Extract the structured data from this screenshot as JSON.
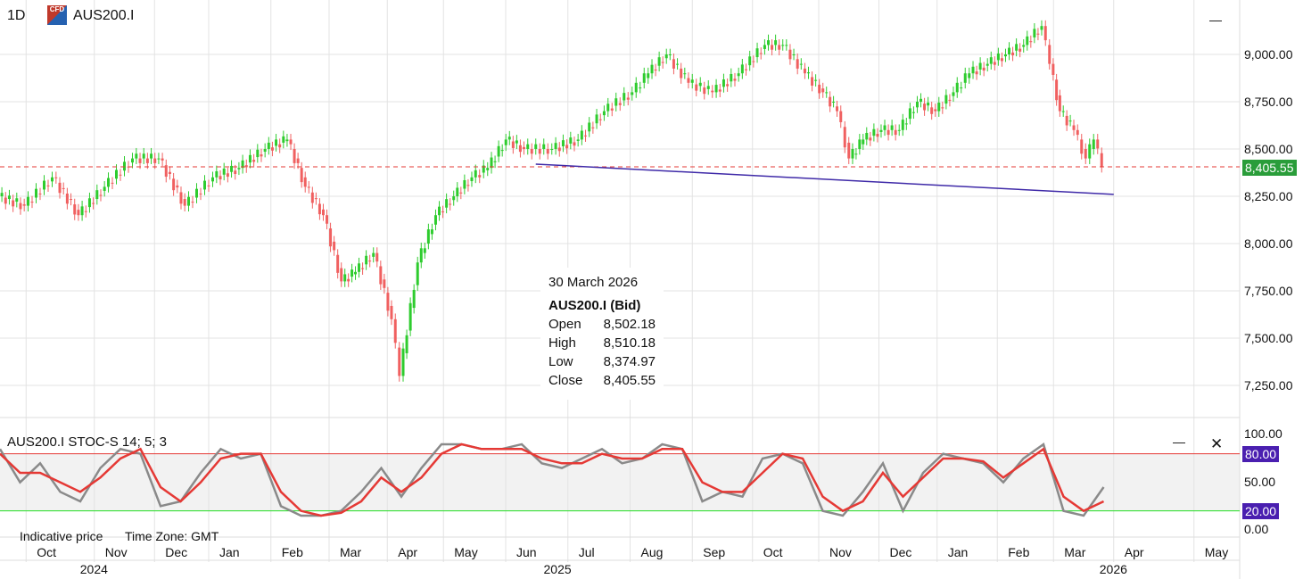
{
  "header": {
    "timeframe": "1D",
    "symbol": "AUS200.I",
    "icon": "cfd-icon",
    "minimize": "—"
  },
  "tooltip": {
    "date": "30 March 2026",
    "title": "AUS200.I (Bid)",
    "rows": [
      {
        "k": "Open",
        "v": "8,502.18"
      },
      {
        "k": "High",
        "v": "8,510.18"
      },
      {
        "k": "Low",
        "v": "8,374.97"
      },
      {
        "k": "Close",
        "v": "8,405.55"
      }
    ]
  },
  "indicator": {
    "title": "AUS200.I STOC-S 14; 5; 3",
    "minimize": "—",
    "close": "✕",
    "upper": "80.00",
    "lower": "20.00",
    "ticks": [
      "100.00",
      "50.00",
      "0.00"
    ]
  },
  "footer": {
    "note": "Indicative price",
    "timezone": "Time Zone: GMT"
  },
  "colors": {
    "up": "#2ecc2e",
    "down": "#f06060",
    "k": "#8a8a8a",
    "d": "#e53935",
    "trend": "#3f2aa8",
    "last": "#2a9d3a"
  },
  "chart_data": {
    "type": "candlestick",
    "last_price": 8405.55,
    "last_price_label": "8,405.55",
    "yticks": [
      {
        "v": 9000,
        "t": "9,000.00"
      },
      {
        "v": 8750,
        "t": "8,750.00"
      },
      {
        "v": 8500,
        "t": "8,500.00"
      },
      {
        "v": 8250,
        "t": "8,250.00"
      },
      {
        "v": 8000,
        "t": "8,000.00"
      },
      {
        "v": 7750,
        "t": "7,750.00"
      },
      {
        "v": 7500,
        "t": "7,500.00"
      },
      {
        "v": 7250,
        "t": "7,250.00"
      }
    ],
    "ylim": [
      7130,
      9230
    ],
    "months": [
      {
        "d": 13,
        "t": "Oct"
      },
      {
        "d": 47,
        "t": "Nov"
      },
      {
        "d": 77,
        "t": "Dec"
      },
      {
        "d": 104,
        "t": "Jan"
      },
      {
        "d": 135,
        "t": "Feb"
      },
      {
        "d": 164,
        "t": "Mar"
      },
      {
        "d": 193,
        "t": "Apr"
      },
      {
        "d": 221,
        "t": "May"
      },
      {
        "d": 252,
        "t": "Jun"
      },
      {
        "d": 283,
        "t": "Jul"
      },
      {
        "d": 314,
        "t": "Aug"
      },
      {
        "d": 345,
        "t": "Sep"
      },
      {
        "d": 375,
        "t": "Oct"
      },
      {
        "d": 408,
        "t": "Nov"
      },
      {
        "d": 438,
        "t": "Dec"
      },
      {
        "d": 467,
        "t": "Jan"
      },
      {
        "d": 497,
        "t": "Feb"
      },
      {
        "d": 525,
        "t": "Mar"
      },
      {
        "d": 555,
        "t": "Apr"
      },
      {
        "d": 595,
        "t": "May"
      }
    ],
    "years": [
      {
        "d": 47,
        "t": "2024"
      },
      {
        "d": 278,
        "t": "2025"
      },
      {
        "d": 555,
        "t": "2026"
      }
    ],
    "closes": [
      [
        0,
        8250
      ],
      [
        13,
        8200
      ],
      [
        27,
        8350
      ],
      [
        40,
        8150
      ],
      [
        53,
        8300
      ],
      [
        67,
        8450
      ],
      [
        80,
        8450
      ],
      [
        93,
        8200
      ],
      [
        107,
        8350
      ],
      [
        120,
        8400
      ],
      [
        133,
        8500
      ],
      [
        144,
        8550
      ],
      [
        153,
        8300
      ],
      [
        162,
        8150
      ],
      [
        171,
        7800
      ],
      [
        178,
        7850
      ],
      [
        187,
        7950
      ],
      [
        196,
        7600
      ],
      [
        200,
        7300
      ],
      [
        209,
        7900
      ],
      [
        218,
        8150
      ],
      [
        227,
        8250
      ],
      [
        236,
        8350
      ],
      [
        244,
        8400
      ],
      [
        253,
        8550
      ],
      [
        262,
        8500
      ],
      [
        276,
        8500
      ],
      [
        289,
        8550
      ],
      [
        302,
        8700
      ],
      [
        316,
        8800
      ],
      [
        324,
        8900
      ],
      [
        333,
        9000
      ],
      [
        344,
        8850
      ],
      [
        356,
        8800
      ],
      [
        369,
        8900
      ],
      [
        382,
        9050
      ],
      [
        391,
        9050
      ],
      [
        402,
        8900
      ],
      [
        411,
        8800
      ],
      [
        418,
        8700
      ],
      [
        424,
        8450
      ],
      [
        431,
        8550
      ],
      [
        440,
        8600
      ],
      [
        449,
        8600
      ],
      [
        458,
        8750
      ],
      [
        467,
        8700
      ],
      [
        476,
        8800
      ],
      [
        484,
        8900
      ],
      [
        493,
        8950
      ],
      [
        502,
        9000
      ],
      [
        511,
        9050
      ],
      [
        520,
        9150
      ],
      [
        524,
        8950
      ],
      [
        529,
        8700
      ],
      [
        536,
        8600
      ],
      [
        542,
        8450
      ],
      [
        546,
        8550
      ],
      [
        550,
        8405.55
      ]
    ],
    "trendline": [
      [
        267,
        8420
      ],
      [
        555,
        8260
      ]
    ],
    "stoch": {
      "days": [
        0,
        10,
        20,
        30,
        40,
        50,
        60,
        70,
        80,
        90,
        100,
        110,
        120,
        130,
        140,
        150,
        160,
        170,
        180,
        190,
        200,
        210,
        220,
        230,
        240,
        250,
        260,
        270,
        280,
        290,
        300,
        310,
        320,
        330,
        340,
        350,
        360,
        370,
        380,
        390,
        400,
        410,
        420,
        430,
        440,
        450,
        460,
        470,
        480,
        490,
        500,
        510,
        520,
        530,
        540,
        550
      ],
      "k": [
        85,
        50,
        70,
        40,
        30,
        65,
        85,
        80,
        25,
        30,
        60,
        85,
        75,
        80,
        25,
        15,
        15,
        20,
        40,
        65,
        35,
        65,
        90,
        90,
        85,
        85,
        90,
        70,
        65,
        75,
        85,
        70,
        75,
        90,
        85,
        30,
        40,
        35,
        75,
        80,
        70,
        20,
        15,
        40,
        70,
        20,
        60,
        80,
        75,
        70,
        50,
        75,
        90,
        20,
        15,
        45
      ],
      "d": [
        80,
        60,
        60,
        50,
        40,
        55,
        75,
        85,
        45,
        30,
        50,
        75,
        80,
        80,
        40,
        20,
        15,
        18,
        30,
        55,
        40,
        55,
        80,
        90,
        85,
        85,
        85,
        75,
        70,
        70,
        80,
        75,
        75,
        85,
        85,
        50,
        40,
        40,
        60,
        80,
        75,
        35,
        20,
        30,
        60,
        35,
        55,
        75,
        75,
        72,
        55,
        70,
        85,
        35,
        20,
        30
      ]
    }
  }
}
